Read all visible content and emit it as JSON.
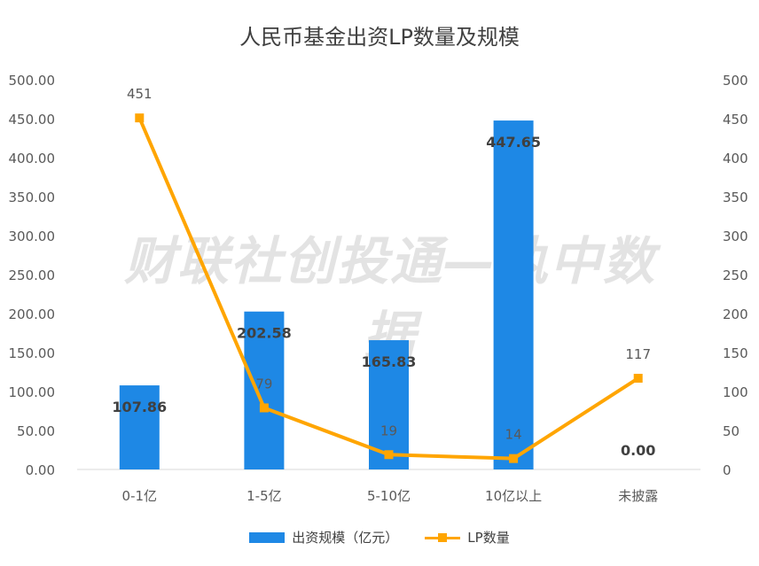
{
  "chart_data": {
    "type": "bar+line",
    "title": "人民币基金出资LP数量及规模",
    "watermark": "财联社创投通—执中数据",
    "categories": [
      "0-1亿",
      "1-5亿",
      "5-10亿",
      "10亿以上",
      "未披露"
    ],
    "series": [
      {
        "name": "出资规模（亿元）",
        "type": "bar",
        "axis": "left",
        "values": [
          107.86,
          202.58,
          165.83,
          447.65,
          0.0
        ],
        "labels": [
          "107.86",
          "202.58",
          "165.83",
          "447.65",
          "0.00"
        ],
        "color": "#1e88e5"
      },
      {
        "name": "LP数量",
        "type": "line",
        "axis": "right",
        "values": [
          451,
          79,
          19,
          14,
          117
        ],
        "labels": [
          "451",
          "79",
          "19",
          "14",
          "117"
        ],
        "color": "#ffa500"
      }
    ],
    "left_axis": {
      "min": 0,
      "max": 500,
      "ticks": [
        "0.00",
        "50.00",
        "100.00",
        "150.00",
        "200.00",
        "250.00",
        "300.00",
        "350.00",
        "400.00",
        "450.00",
        "500.00"
      ]
    },
    "right_axis": {
      "min": 0,
      "max": 500,
      "ticks": [
        "0",
        "50",
        "100",
        "150",
        "200",
        "250",
        "300",
        "350",
        "400",
        "450",
        "500"
      ]
    },
    "grid": false,
    "legend_position": "bottom"
  }
}
